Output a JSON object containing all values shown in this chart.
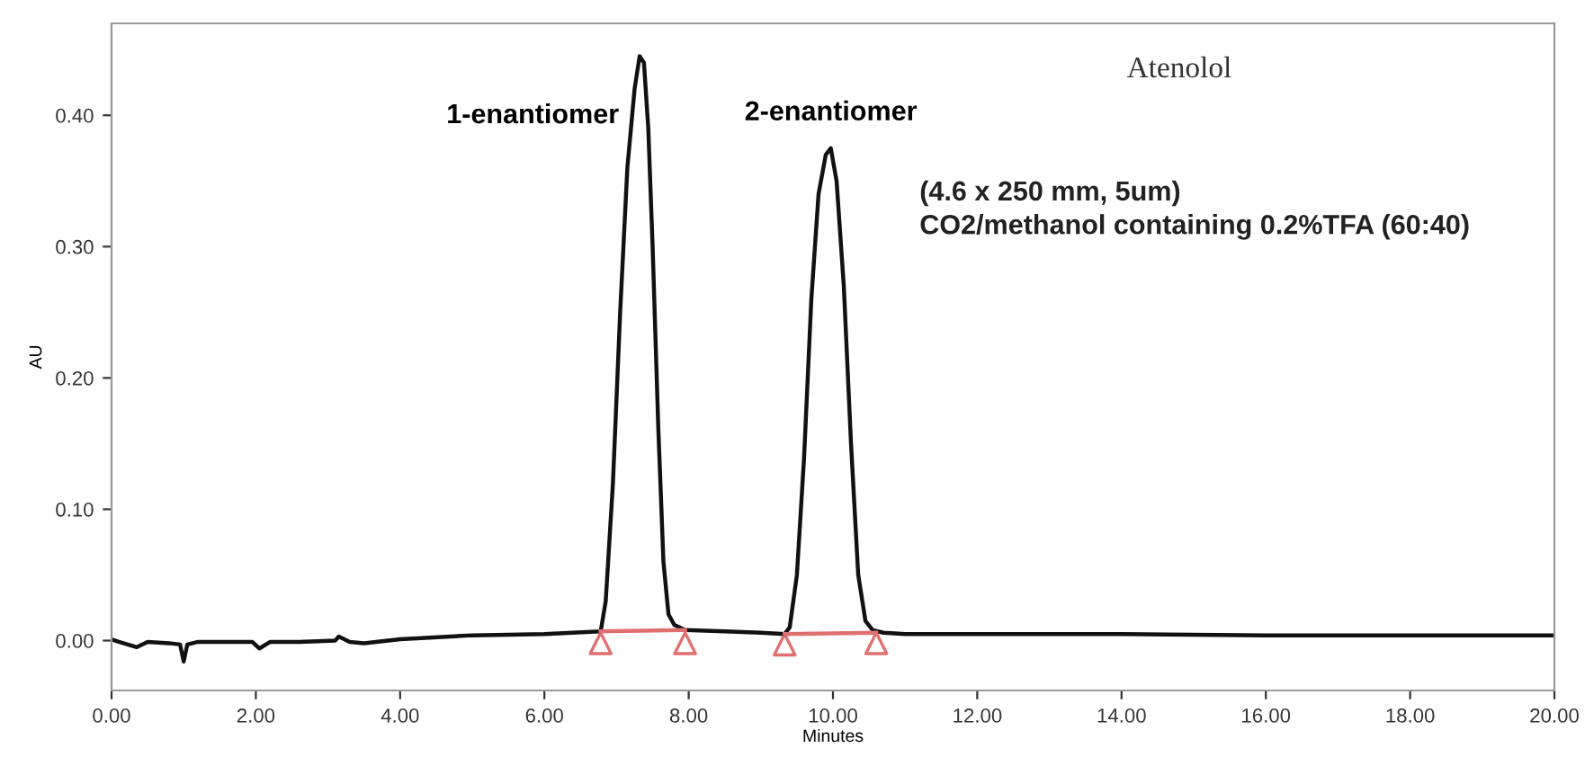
{
  "chart_data": {
    "type": "line",
    "title": "Atenolol",
    "xlabel": "Minutes",
    "ylabel": "AU",
    "xlim": [
      0,
      20
    ],
    "ylim": [
      -0.038,
      0.47
    ],
    "xticks": [
      {
        "value": 0,
        "label": "0.00"
      },
      {
        "value": 2,
        "label": "2.00"
      },
      {
        "value": 4,
        "label": "4.00"
      },
      {
        "value": 6,
        "label": "6.00"
      },
      {
        "value": 8,
        "label": "8.00"
      },
      {
        "value": 10,
        "label": "10.00"
      },
      {
        "value": 12,
        "label": "12.00"
      },
      {
        "value": 14,
        "label": "14.00"
      },
      {
        "value": 16,
        "label": "16.00"
      },
      {
        "value": 18,
        "label": "18.00"
      },
      {
        "value": 20,
        "label": "20.00"
      }
    ],
    "yticks": [
      {
        "value": 0,
        "label": "0.00"
      },
      {
        "value": 0.1,
        "label": "0.10"
      },
      {
        "value": 0.2,
        "label": "0.20"
      },
      {
        "value": 0.3,
        "label": "0.30"
      },
      {
        "value": 0.4,
        "label": "0.40"
      }
    ],
    "grid": false,
    "series": [
      {
        "color": "#111111",
        "marker": "none",
        "x": [
          0,
          0.1,
          0.35,
          0.5,
          0.8,
          0.95,
          1.0,
          1.05,
          1.2,
          1.6,
          1.95,
          2.05,
          2.2,
          2.6,
          3.1,
          3.15,
          3.3,
          3.5,
          4.0,
          5.0,
          6.0,
          6.78,
          6.85,
          6.95,
          7.05,
          7.15,
          7.25,
          7.32,
          7.38,
          7.44,
          7.5,
          7.58,
          7.65,
          7.72,
          7.8,
          7.95,
          8.5,
          9.0,
          9.33,
          9.4,
          9.5,
          9.6,
          9.7,
          9.8,
          9.9,
          9.97,
          10.05,
          10.15,
          10.25,
          10.35,
          10.45,
          10.55,
          10.7,
          11,
          12,
          14,
          16,
          18,
          20
        ],
        "values": [
          0.001,
          -0.001,
          -0.005,
          -0.001,
          -0.002,
          -0.003,
          -0.016,
          -0.003,
          -0.001,
          -0.001,
          -0.001,
          -0.006,
          -0.001,
          -0.001,
          0.0,
          0.003,
          -0.001,
          -0.002,
          0.001,
          0.004,
          0.005,
          0.007,
          0.03,
          0.12,
          0.25,
          0.36,
          0.42,
          0.445,
          0.44,
          0.39,
          0.3,
          0.16,
          0.06,
          0.02,
          0.012,
          0.008,
          0.007,
          0.006,
          0.005,
          0.01,
          0.05,
          0.14,
          0.26,
          0.34,
          0.37,
          0.375,
          0.35,
          0.27,
          0.15,
          0.05,
          0.015,
          0.008,
          0.006,
          0.005,
          0.005,
          0.005,
          0.004,
          0.004,
          0.004
        ]
      },
      {
        "type": "line",
        "color": "#e07070",
        "marker": "none",
        "x": [
          6.78,
          7.95,
          8.5,
          9.33,
          10.6
        ],
        "values": [
          0.007,
          0.008,
          null,
          0.005,
          0.006
        ]
      },
      {
        "type": "scatter",
        "color": "#e07070",
        "marker": "triangle",
        "x": [
          6.78,
          7.95,
          9.33,
          10.6
        ],
        "values": [
          -0.002,
          -0.002,
          -0.003,
          -0.002
        ]
      }
    ],
    "annotations": [
      {
        "text": "1-enantiomer",
        "x": 7.38,
        "y": 0.445
      },
      {
        "text": "2-enantiomer",
        "x": 9.97,
        "y": 0.375
      },
      "(4.6 x 250 mm, 5um)\nCO2/methanol containing 0.2%TFA (60:40)"
    ]
  }
}
